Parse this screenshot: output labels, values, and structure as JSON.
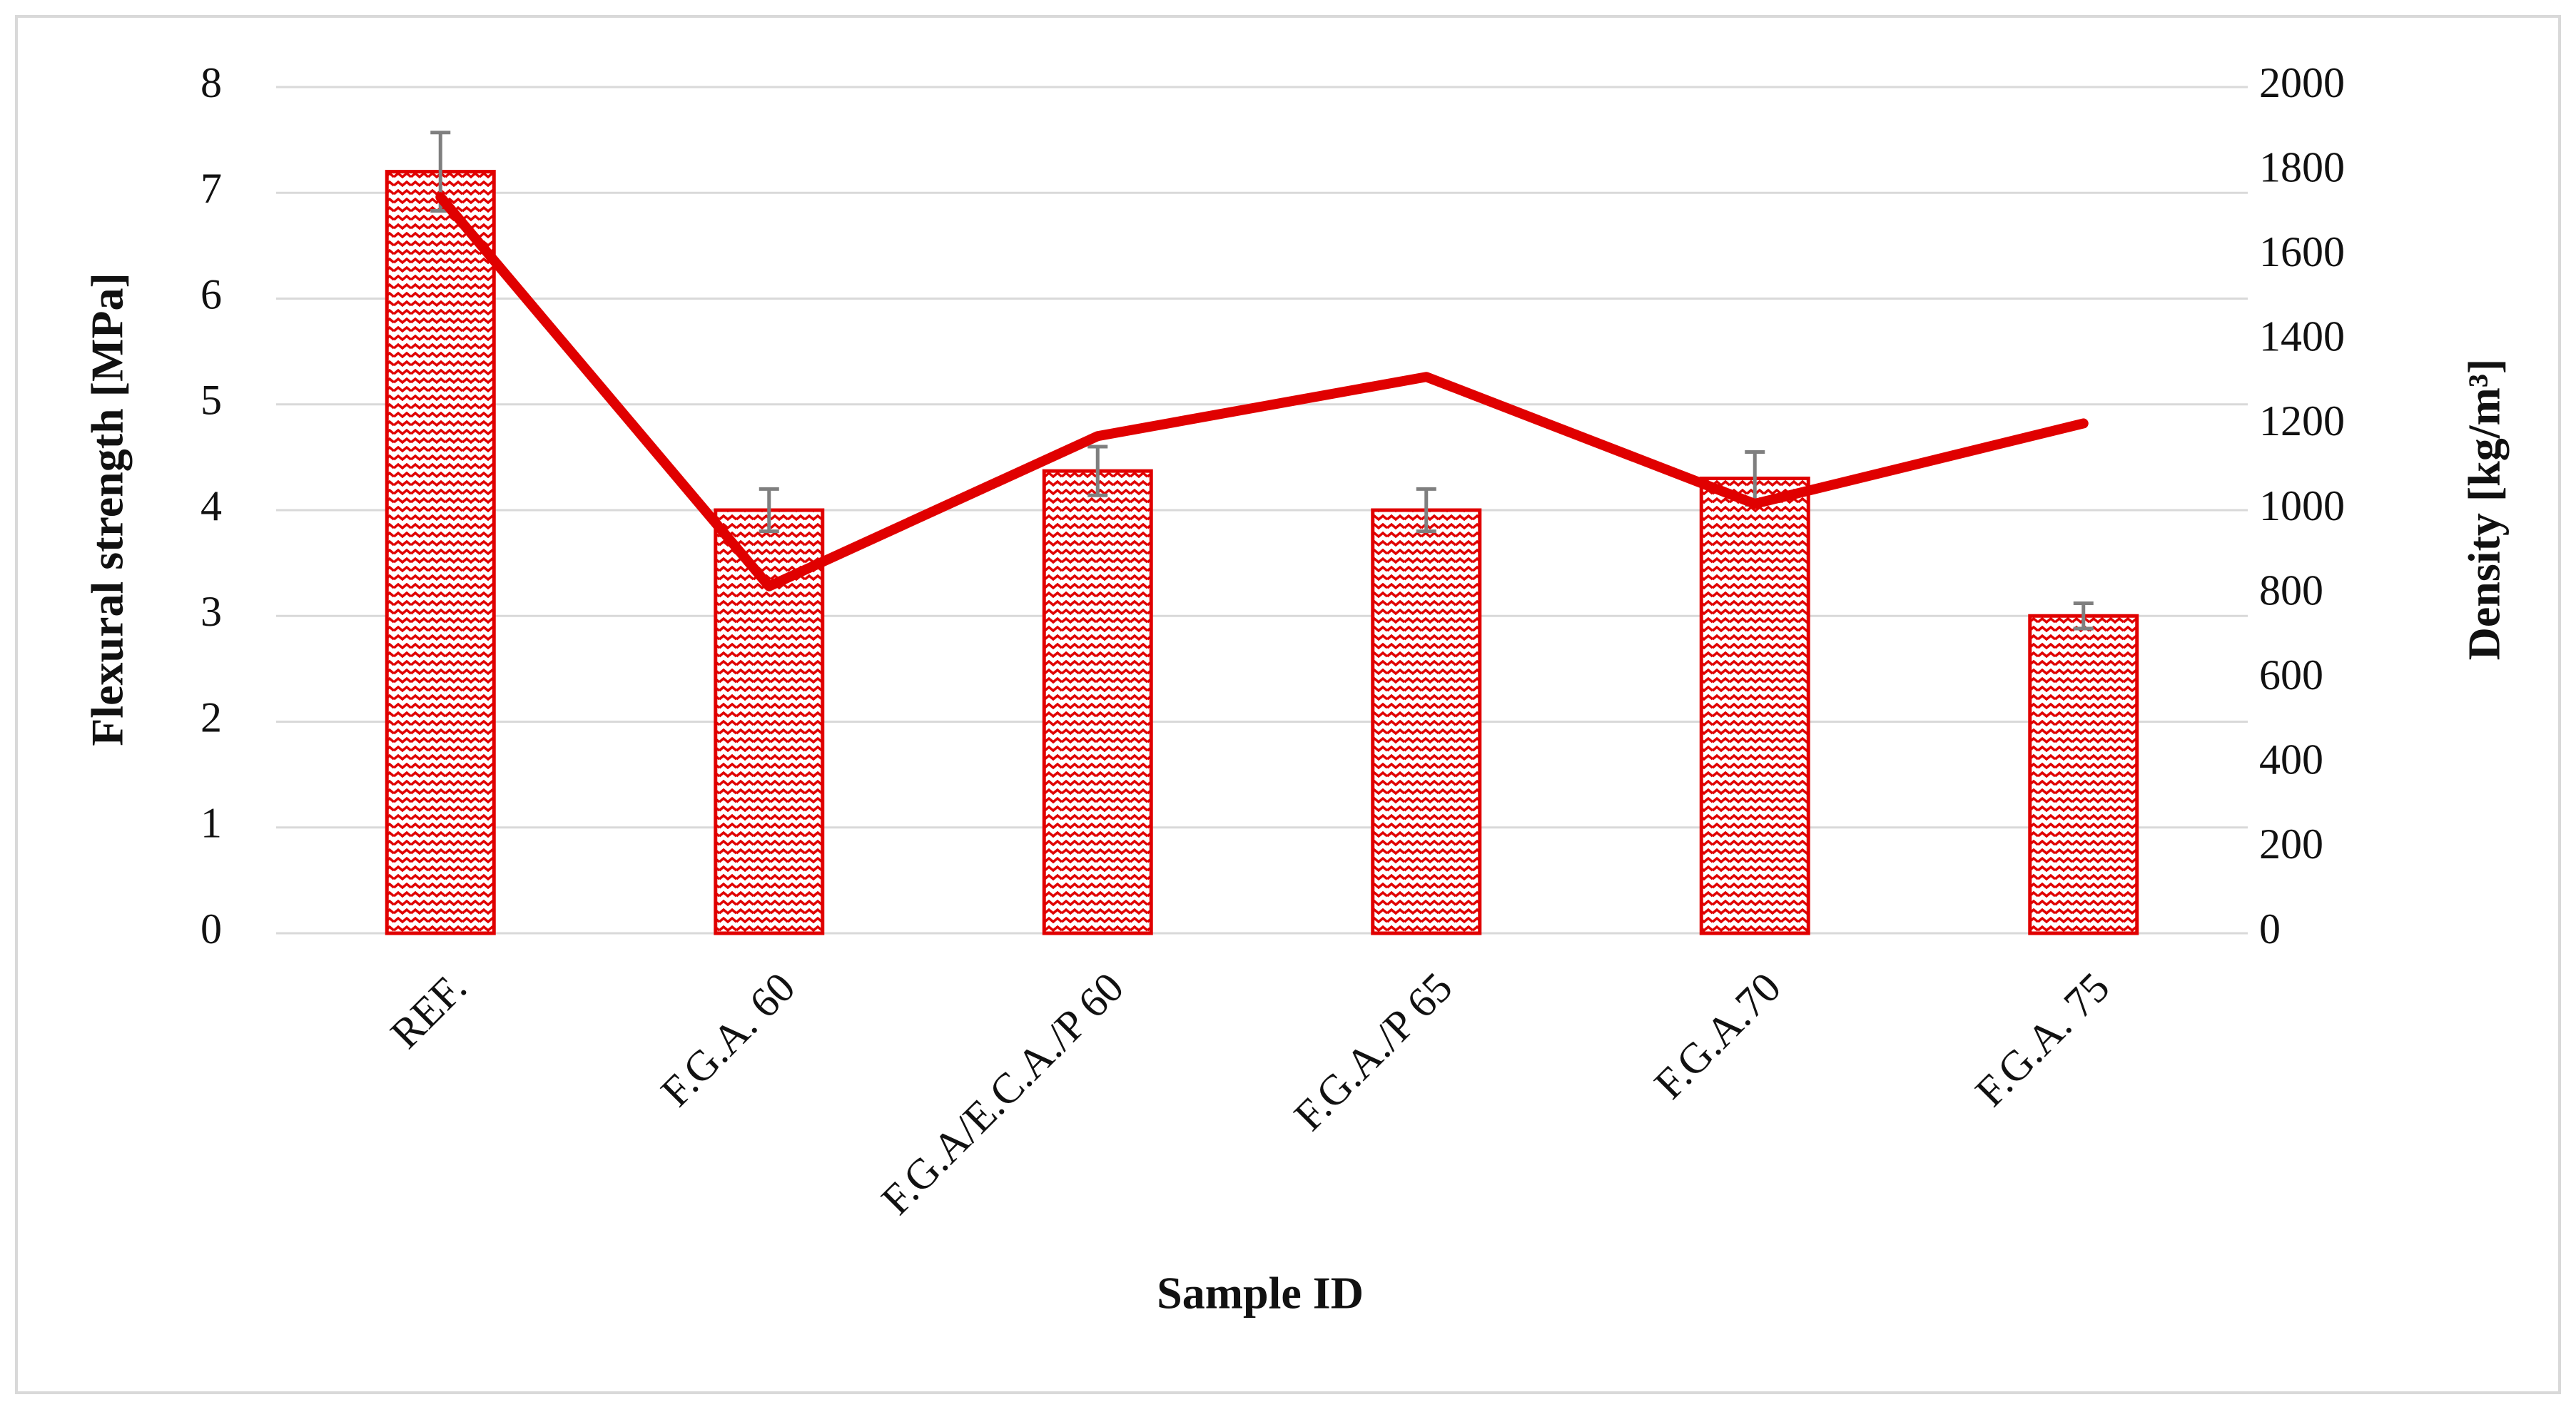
{
  "chart_data": {
    "type": "bar",
    "x_label": "Sample ID",
    "y_label": "Flexural strength [MPa]",
    "y2_label": "Density [kg/m³]",
    "categories": [
      "REF.",
      "F.G.A. 60",
      "F.G.A/E.C.A./P 60",
      "F.G.A./P 65",
      "F.G.A.70",
      "F.G.A. 75"
    ],
    "series": [
      {
        "type": "bar",
        "color": "#e00000",
        "values": [
          7.2,
          4.0,
          4.37,
          4.0,
          4.3,
          3.0
        ],
        "errors": [
          0.37,
          0.2,
          0.23,
          0.2,
          0.25,
          0.12
        ]
      },
      {
        "type": "line",
        "axis": "y2",
        "color": "#e00000",
        "values": [
          1740,
          820,
          1175,
          1315,
          1015,
          1205
        ]
      }
    ],
    "ylim": [
      0,
      8
    ],
    "yticks": [
      0,
      1,
      2,
      3,
      4,
      5,
      6,
      7,
      8
    ],
    "y2lim": [
      0,
      2000
    ],
    "y2ticks": [
      0,
      200,
      400,
      600,
      800,
      1000,
      1200,
      1400,
      1600,
      1800,
      2000
    ],
    "grid": true
  }
}
